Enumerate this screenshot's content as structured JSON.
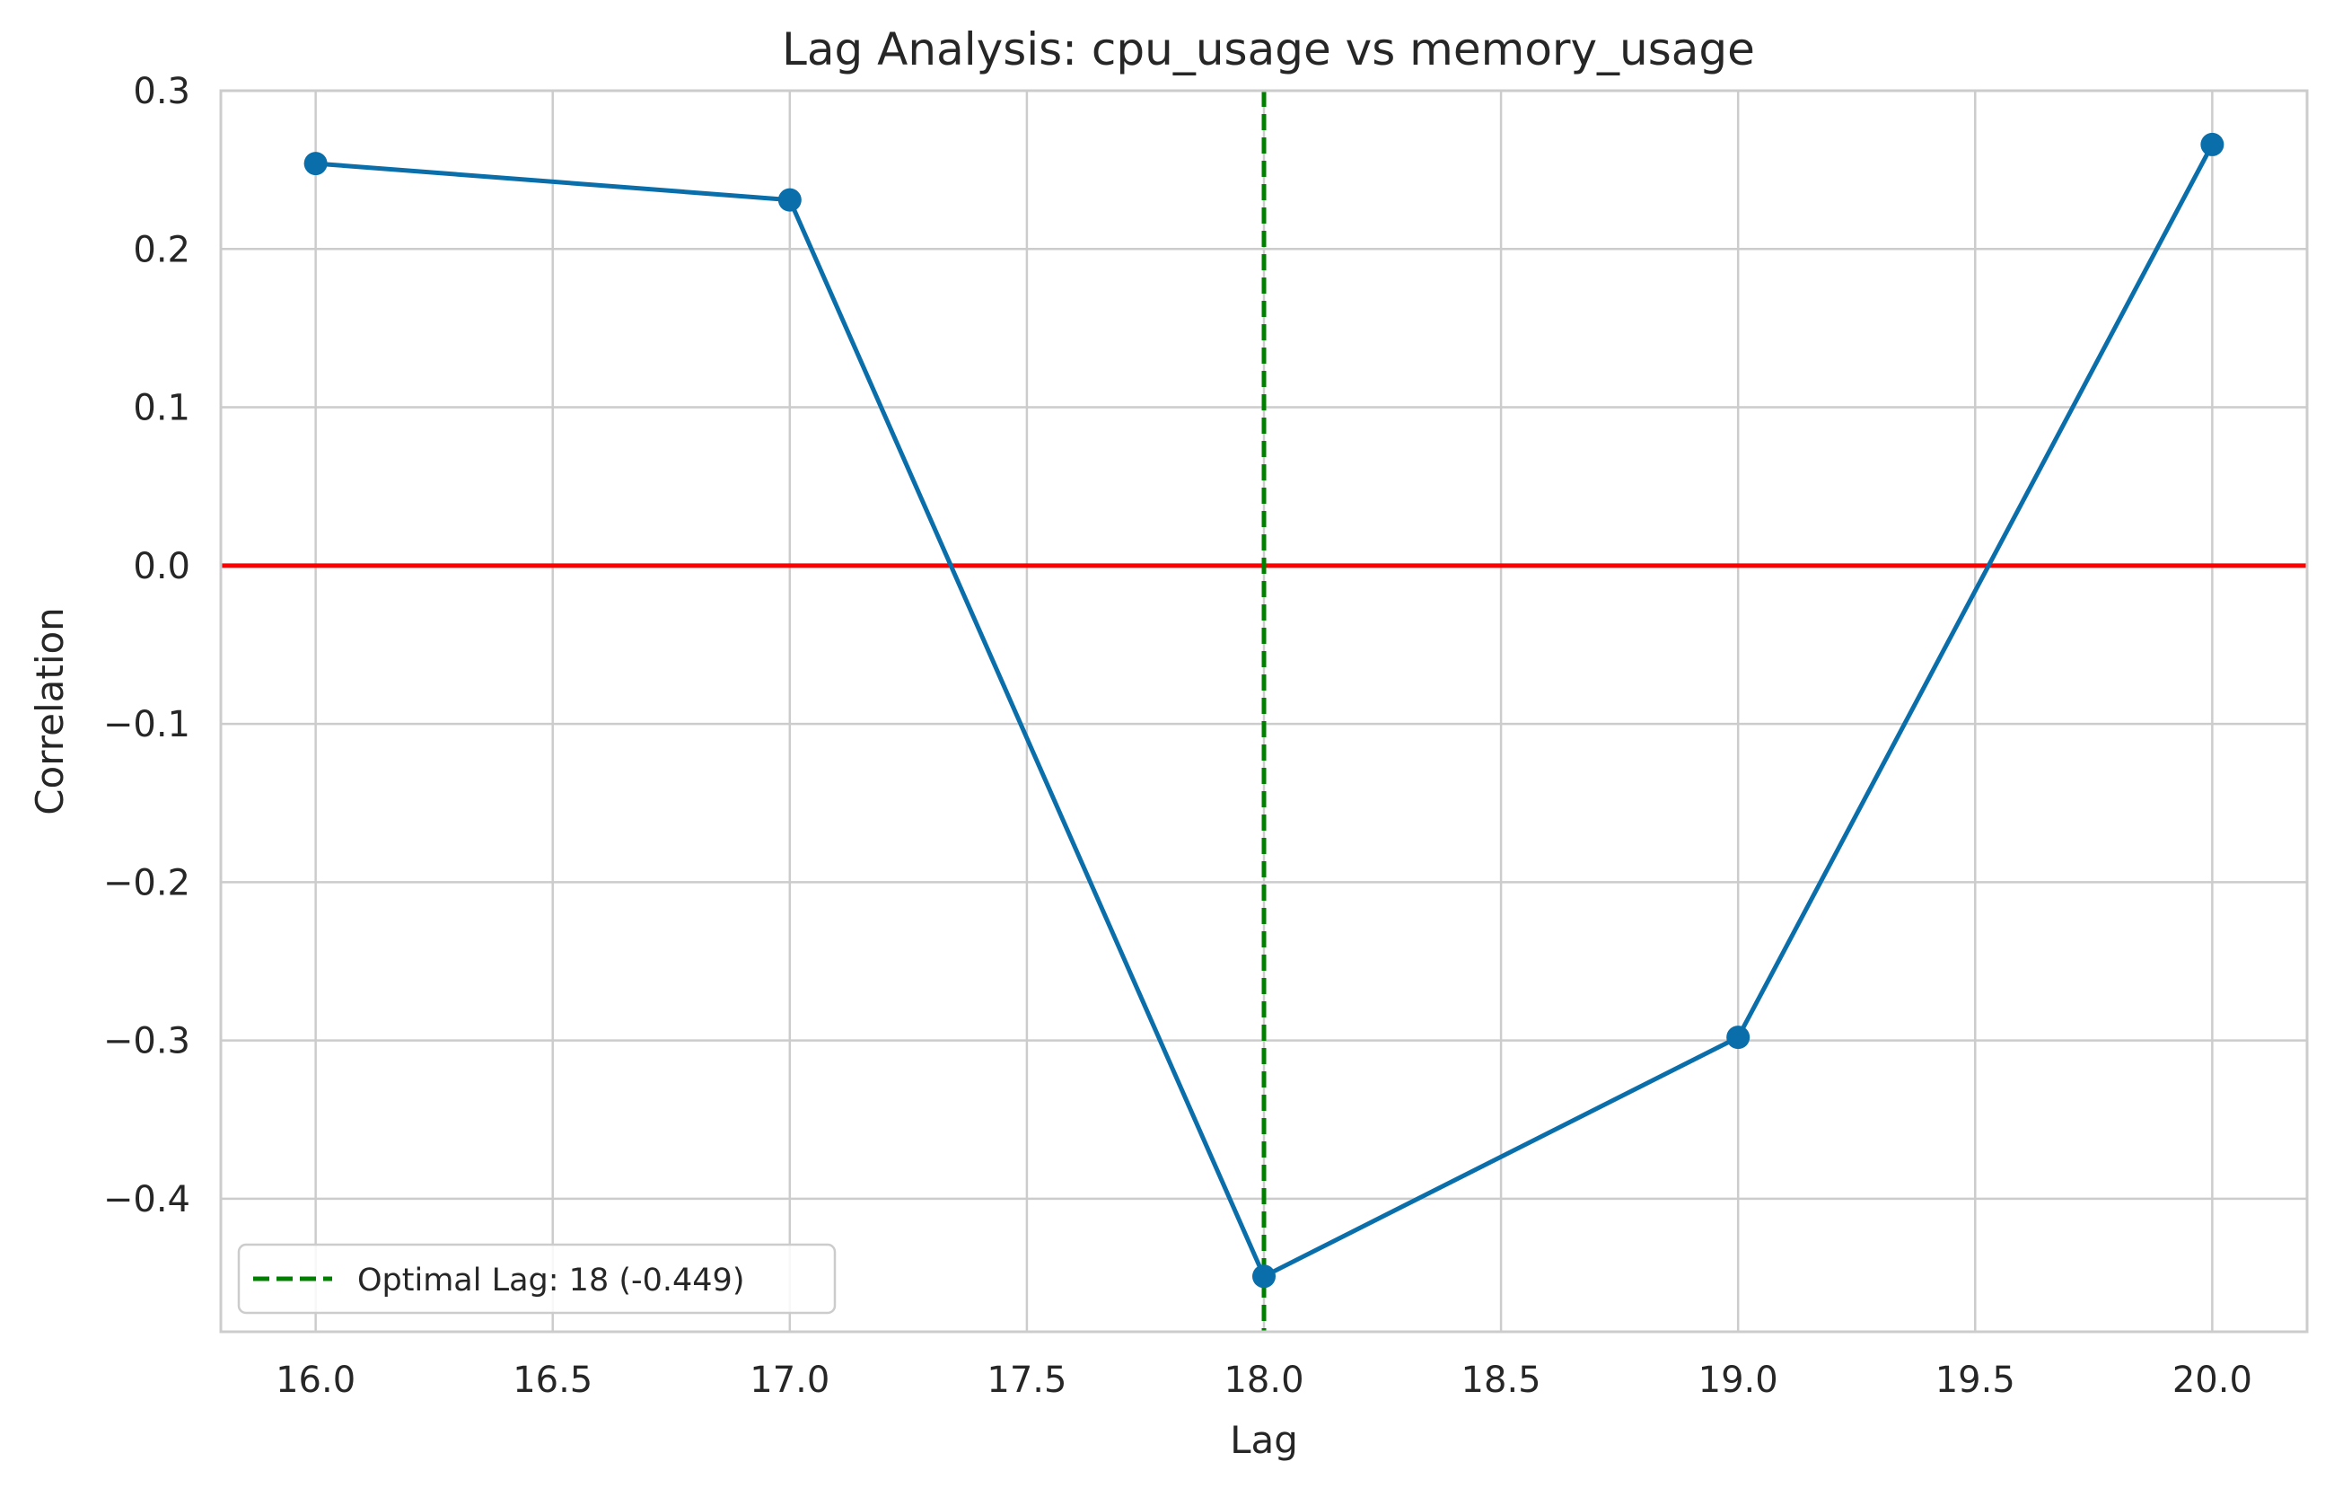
{
  "chart_data": {
    "type": "line",
    "title": "Lag Analysis: cpu_usage vs memory_usage",
    "xlabel": "Lag",
    "ylabel": "Correlation",
    "xlim": [
      15.8,
      20.2
    ],
    "ylim": [
      -0.484,
      0.3
    ],
    "x_ticks": [
      16.0,
      16.5,
      17.0,
      17.5,
      18.0,
      18.5,
      19.0,
      19.5,
      20.0
    ],
    "x_tick_labels": [
      "16.0",
      "16.5",
      "17.0",
      "17.5",
      "18.0",
      "18.5",
      "19.0",
      "19.5",
      "20.0"
    ],
    "y_ticks": [
      0.3,
      0.2,
      0.1,
      0.0,
      -0.1,
      -0.2,
      -0.3,
      -0.4
    ],
    "y_tick_labels": [
      "0.3",
      "0.2",
      "0.1",
      "0.0",
      "−0.1",
      "−0.2",
      "−0.3",
      "−0.4"
    ],
    "grid": true,
    "series": [
      {
        "x": [
          16,
          17,
          18,
          19,
          20
        ],
        "values": [
          0.254,
          0.231,
          -0.449,
          -0.298,
          0.266
        ],
        "color": "#0a6eaa",
        "marker": "circle"
      }
    ],
    "reference_lines": [
      {
        "orientation": "horizontal",
        "value": 0.0,
        "color": "#ff0000",
        "style": "solid"
      },
      {
        "orientation": "vertical",
        "value": 18,
        "color": "#007f00",
        "style": "dashed",
        "label": "Optimal Lag: 18 (-0.449)"
      }
    ],
    "legend": {
      "position": "lower-left",
      "entries": [
        "Optimal Lag: 18 (-0.449)"
      ]
    }
  }
}
